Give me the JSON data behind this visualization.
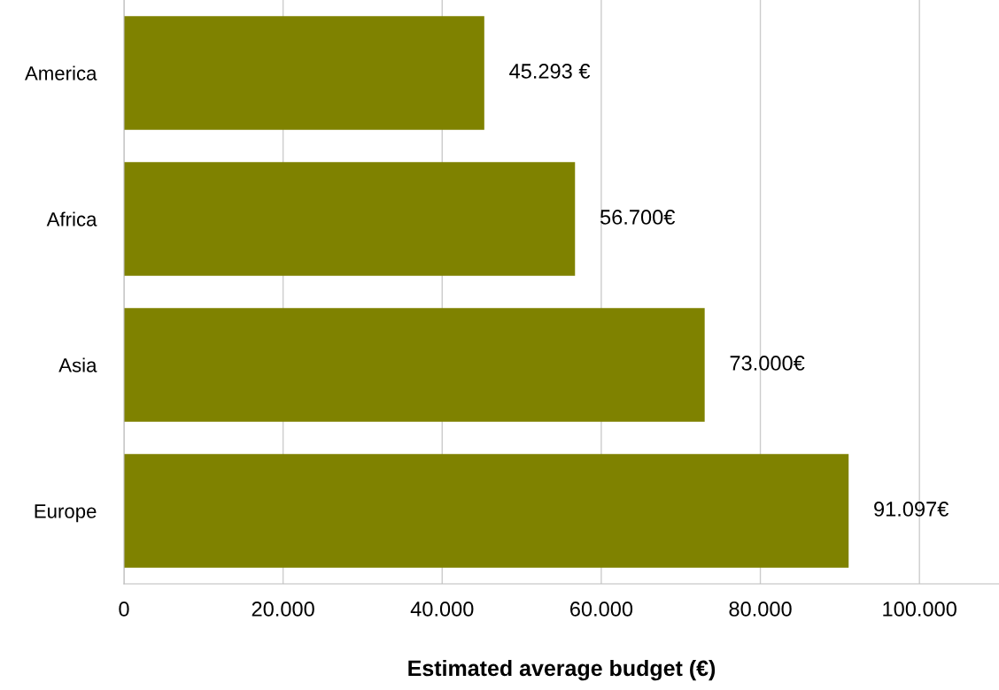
{
  "chart_data": {
    "type": "bar",
    "orientation": "horizontal",
    "xlabel": "Estimated average budget (€)",
    "categories": [
      "America",
      "Africa",
      "Asia",
      "Europe"
    ],
    "values": [
      45293,
      56700,
      73000,
      91097
    ],
    "value_labels": [
      "45.293 €",
      "56.700€",
      "73.000€",
      "91.097€"
    ],
    "color": "#7f8200",
    "xlim": [
      0,
      110000
    ],
    "xticks": [
      0,
      {
        "value": 20000,
        "label": "20.000"
      },
      {
        "value": 40000,
        "label": "40.000"
      },
      {
        "value": 60000,
        "label": "60.000"
      },
      {
        "value": 80000,
        "label": "80.000"
      },
      {
        "value": 100000,
        "label": "100.000"
      }
    ],
    "grid": "x"
  }
}
